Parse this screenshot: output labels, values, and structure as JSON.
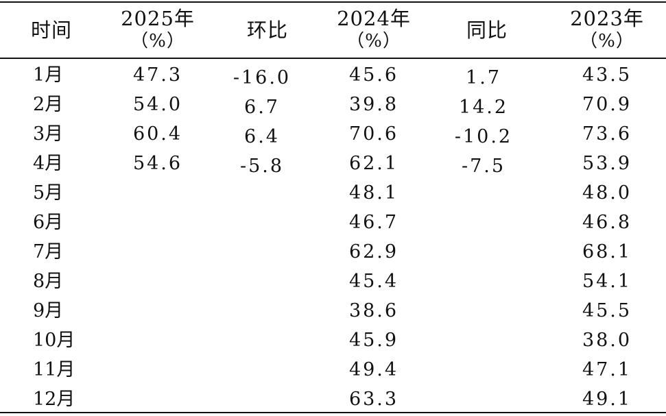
{
  "table": {
    "headers": {
      "time": "时间",
      "y2025": "2025年",
      "y2025_unit": "（%）",
      "mom": "环比",
      "y2024": "2024年",
      "y2024_unit": "（%）",
      "yoy": "同比",
      "y2023": "2023年",
      "y2023_unit": "（%）"
    },
    "rows": [
      {
        "month": "1月",
        "y2025": "47.3",
        "mom": "-16.0",
        "y2024": "45.6",
        "yoy": "1.7",
        "y2023": "43.5"
      },
      {
        "month": "2月",
        "y2025": "54.0",
        "mom": "6.7",
        "y2024": "39.8",
        "yoy": "14.2",
        "y2023": "70.9"
      },
      {
        "month": "3月",
        "y2025": "60.4",
        "mom": "6.4",
        "y2024": "70.6",
        "yoy": "-10.2",
        "y2023": "73.6"
      },
      {
        "month": "4月",
        "y2025": "54.6",
        "mom": "-5.8",
        "y2024": "62.1",
        "yoy": "-7.5",
        "y2023": "53.9"
      },
      {
        "month": "5月",
        "y2025": "",
        "mom": "",
        "y2024": "48.1",
        "yoy": "",
        "y2023": "48.0"
      },
      {
        "month": "6月",
        "y2025": "",
        "mom": "",
        "y2024": "46.7",
        "yoy": "",
        "y2023": "46.8"
      },
      {
        "month": "7月",
        "y2025": "",
        "mom": "",
        "y2024": "62.9",
        "yoy": "",
        "y2023": "68.1"
      },
      {
        "month": "8月",
        "y2025": "",
        "mom": "",
        "y2024": "45.4",
        "yoy": "",
        "y2023": "54.1"
      },
      {
        "month": "9月",
        "y2025": "",
        "mom": "",
        "y2024": "38.6",
        "yoy": "",
        "y2023": "45.5"
      },
      {
        "month": "10月",
        "y2025": "",
        "mom": "",
        "y2024": "45.9",
        "yoy": "",
        "y2023": "38.0"
      },
      {
        "month": "11月",
        "y2025": "",
        "mom": "",
        "y2024": "49.4",
        "yoy": "",
        "y2023": "47.1"
      },
      {
        "month": "12月",
        "y2025": "",
        "mom": "",
        "y2024": "63.3",
        "yoy": "",
        "y2023": "49.1"
      }
    ]
  }
}
